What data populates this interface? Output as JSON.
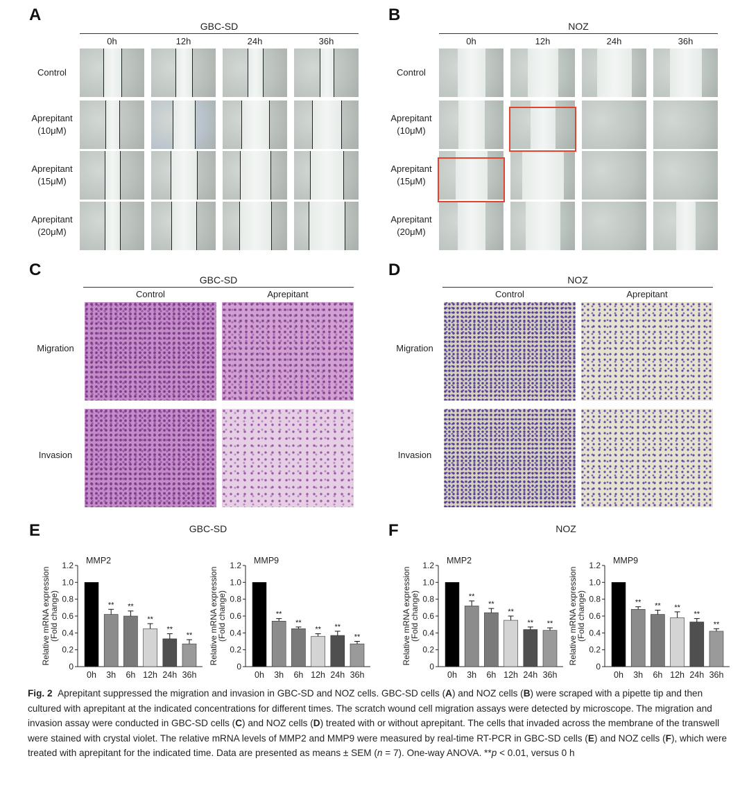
{
  "panels": {
    "A": {
      "label": "A",
      "cell_line": "GBC-SD",
      "times": [
        "0h",
        "12h",
        "24h",
        "36h"
      ],
      "rows": [
        [
          "Control"
        ],
        [
          "Aprepitant",
          "(10μM)"
        ],
        [
          "Aprepitant",
          "(15μM)"
        ],
        [
          "Aprepitant",
          "(20μM)"
        ]
      ]
    },
    "B": {
      "label": "B",
      "cell_line": "NOZ",
      "times": [
        "0h",
        "12h",
        "24h",
        "36h"
      ],
      "rows": [
        [
          "Control"
        ],
        [
          "Aprepitant",
          "(10μM)"
        ],
        [
          "Aprepitant",
          "(15μM)"
        ],
        [
          "Aprepitant",
          "(20μM)"
        ]
      ]
    },
    "C": {
      "label": "C",
      "cell_line": "GBC-SD",
      "columns": [
        "Control",
        "Aprepitant"
      ],
      "rows": [
        "Migration",
        "Invasion"
      ]
    },
    "D": {
      "label": "D",
      "cell_line": "NOZ",
      "columns": [
        "Control",
        "Aprepitant"
      ],
      "rows": [
        "Migration",
        "Invasion"
      ]
    },
    "E": {
      "label": "E",
      "cell_line": "GBC-SD"
    },
    "F": {
      "label": "F",
      "cell_line": "NOZ"
    }
  },
  "chart_data": [
    {
      "type": "bar",
      "panel": "E",
      "gene": "MMP2",
      "ylabel": "Relative mRNA expression\n(Fold change)",
      "categories": [
        "0h",
        "3h",
        "6h",
        "12h",
        "24h",
        "36h"
      ],
      "values": [
        1.0,
        0.62,
        0.6,
        0.45,
        0.33,
        0.27
      ],
      "errors": [
        0,
        0.06,
        0.06,
        0.06,
        0.06,
        0.05
      ],
      "sig": [
        "",
        "**",
        "**",
        "**",
        "**",
        "**"
      ],
      "ylim": [
        0,
        1.2
      ],
      "yticks": [
        "0",
        "0.2",
        "0.4",
        "0.6",
        "0.8",
        "1.0",
        "1.2"
      ],
      "colors": [
        "#000000",
        "#8c8c8c",
        "#7a7a7a",
        "#d4d4d4",
        "#4f4f4f",
        "#9a9a9a"
      ]
    },
    {
      "type": "bar",
      "panel": "E",
      "gene": "MMP9",
      "ylabel": "Relative mRNA expression\n(Fold change)",
      "categories": [
        "0h",
        "3h",
        "6h",
        "12h",
        "24h",
        "36h"
      ],
      "values": [
        1.0,
        0.54,
        0.45,
        0.36,
        0.37,
        0.27
      ],
      "errors": [
        0,
        0.03,
        0.02,
        0.03,
        0.05,
        0.03
      ],
      "sig": [
        "",
        "**",
        "**",
        "**",
        "**",
        "**"
      ],
      "ylim": [
        0,
        1.2
      ],
      "yticks": [
        "0",
        "0.2",
        "0.4",
        "0.6",
        "0.8",
        "1.0",
        "1.2"
      ],
      "colors": [
        "#000000",
        "#8c8c8c",
        "#7a7a7a",
        "#d4d4d4",
        "#4f4f4f",
        "#9a9a9a"
      ]
    },
    {
      "type": "bar",
      "panel": "F",
      "gene": "MMP2",
      "ylabel": "Relative mRNA expression\n(Fold change)",
      "categories": [
        "0h",
        "3h",
        "6h",
        "12h",
        "24h",
        "36h"
      ],
      "values": [
        1.0,
        0.72,
        0.64,
        0.55,
        0.44,
        0.43
      ],
      "errors": [
        0,
        0.06,
        0.05,
        0.05,
        0.03,
        0.03
      ],
      "sig": [
        "",
        "**",
        "**",
        "**",
        "**",
        "**"
      ],
      "ylim": [
        0,
        1.2
      ],
      "yticks": [
        "0",
        "0.2",
        "0.4",
        "0.6",
        "0.8",
        "1.0",
        "1.2"
      ],
      "colors": [
        "#000000",
        "#8c8c8c",
        "#7a7a7a",
        "#d4d4d4",
        "#4f4f4f",
        "#9a9a9a"
      ]
    },
    {
      "type": "bar",
      "panel": "F",
      "gene": "MMP9",
      "ylabel": "Relative mRNA expression\n(Fold change)",
      "categories": [
        "0h",
        "3h",
        "6h",
        "12h",
        "24h",
        "36h"
      ],
      "values": [
        1.0,
        0.68,
        0.62,
        0.58,
        0.53,
        0.42
      ],
      "errors": [
        0,
        0.03,
        0.05,
        0.07,
        0.04,
        0.03
      ],
      "sig": [
        "",
        "**",
        "**",
        "**",
        "**",
        "**"
      ],
      "ylim": [
        0,
        1.2
      ],
      "yticks": [
        "0",
        "0.2",
        "0.4",
        "0.6",
        "0.8",
        "1.0",
        "1.2"
      ],
      "colors": [
        "#000000",
        "#8c8c8c",
        "#7a7a7a",
        "#d4d4d4",
        "#4f4f4f",
        "#9a9a9a"
      ]
    }
  ],
  "caption": {
    "fig": "Fig. 2",
    "parts": [
      {
        "t": "Aprepitant suppressed the migration and invasion in GBC-SD and NOZ cells. GBC-SD cells ("
      },
      {
        "b": "A"
      },
      {
        "t": ") and NOZ cells ("
      },
      {
        "b": "B"
      },
      {
        "t": ") were scraped with a pipette tip and then cultured with aprepitant at the indicated concentrations for different times. The scratch wound cell migration assays were detected by microscope. The migration and invasion assay were conducted in GBC-SD cells ("
      },
      {
        "b": "C"
      },
      {
        "t": ") and NOZ cells ("
      },
      {
        "b": "D"
      },
      {
        "t": ") treated with or without aprepitant. The cells that invaded across the membrane of the transwell were stained with crystal violet. The relative mRNA levels of MMP2 and MMP9 were measured by real-time RT-PCR in GBC-SD cells ("
      },
      {
        "b": "E"
      },
      {
        "t": ") and NOZ cells ("
      },
      {
        "b": "F"
      },
      {
        "t": "), which were treated with aprepitant for the indicated time. Data are presented as means ± SEM ("
      },
      {
        "i": "n"
      },
      {
        "t": " = 7). One-way ANOVA. **"
      },
      {
        "i": "p"
      },
      {
        "t": " < 0.01, versus 0 h"
      }
    ]
  }
}
